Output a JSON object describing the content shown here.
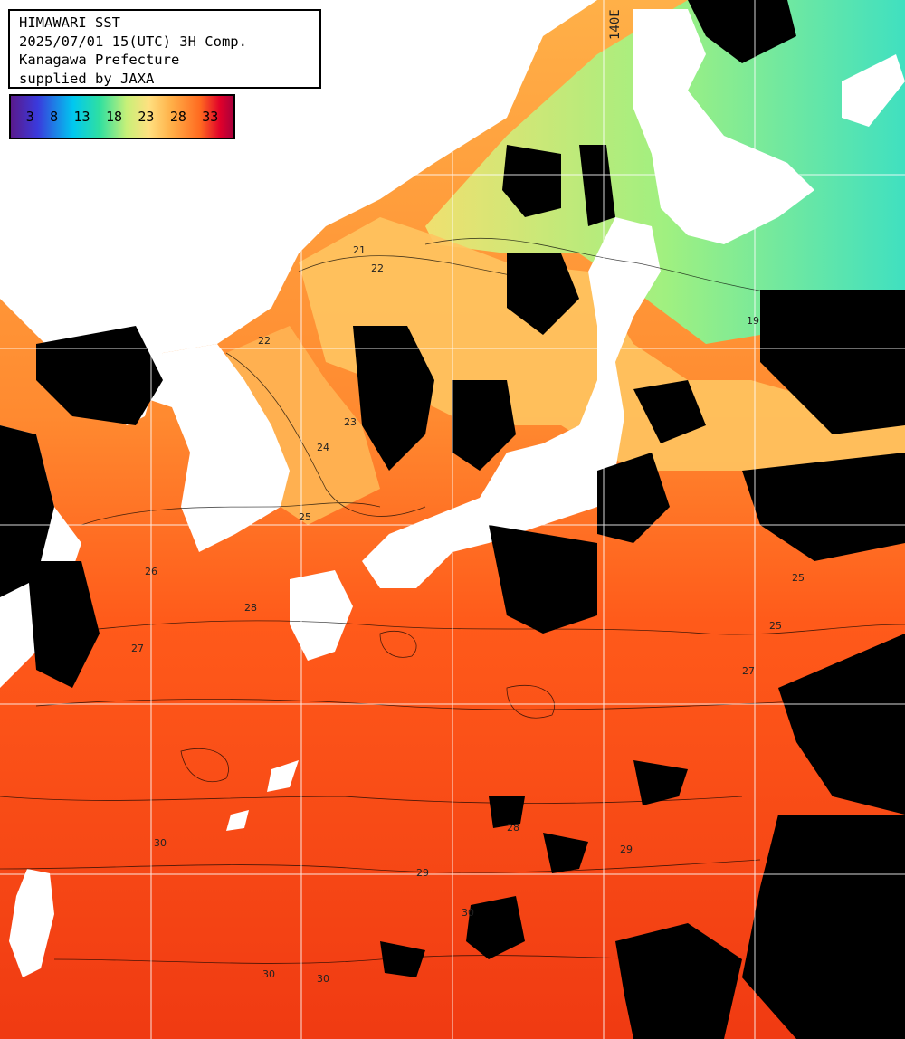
{
  "header": {
    "line1": "HIMAWARI SST",
    "line2": "2025/07/01 15(UTC) 3H Comp.",
    "line3": "Kanagawa Prefecture",
    "line4": "supplied by JAXA"
  },
  "color_scale": {
    "ticks": [
      "3",
      "8",
      "13",
      "18",
      "23",
      "28",
      "33"
    ],
    "colors": [
      "#5a1a8c",
      "#00c8f0",
      "#ffe080",
      "#ff6a20",
      "#e0002a"
    ]
  },
  "grid": {
    "longitude_label": "140E"
  },
  "contour_labels": [
    "19",
    "21",
    "22",
    "22",
    "23",
    "24",
    "25",
    "25",
    "25",
    "26",
    "27",
    "27",
    "28",
    "28",
    "29",
    "29",
    "30",
    "30",
    "30",
    "30"
  ],
  "legend_colors": {
    "land": "#ffffff",
    "cloud": "#000000",
    "grid_line": "#ffffff"
  }
}
